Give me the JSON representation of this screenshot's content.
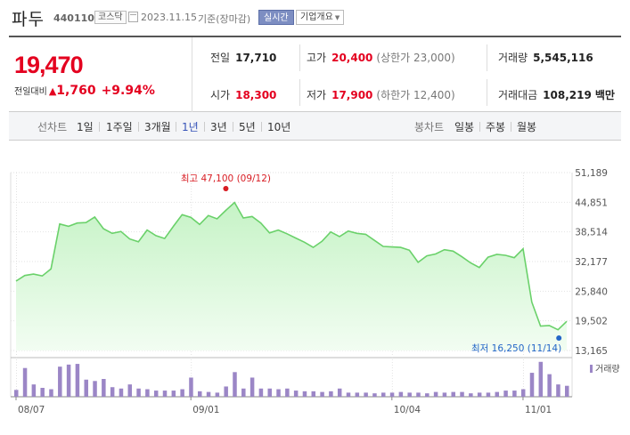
{
  "header": {
    "name": "파두",
    "code": "440110",
    "market": "코스닥",
    "date": "2023.11.15",
    "basis": "기준(장마감)",
    "realtime_button": "실시간",
    "company_button": "기업개요"
  },
  "quote": {
    "current": "19,470",
    "change_label": "전일대비",
    "change_amount": "1,760",
    "change_percent": "+9.94%",
    "prev_close_label": "전일",
    "prev_close": "17,710",
    "high_label": "고가",
    "high": "20,400",
    "upper_limit": "(상한가 23,000)",
    "volume_label": "거래량",
    "volume": "5,545,116",
    "open_label": "시가",
    "open": "18,300",
    "low_label": "저가",
    "low": "17,900",
    "lower_limit": "(하한가 12,400)",
    "amount_label": "거래대금",
    "amount": "108,219",
    "amount_unit": "백만"
  },
  "period_tabs": {
    "label": "선차트",
    "items": [
      "1일",
      "1주일",
      "3개월",
      "1년",
      "3년",
      "5년",
      "10년"
    ],
    "active": "1년"
  },
  "candle_tabs": {
    "label": "봉차트",
    "items": [
      "일봉",
      "주봉",
      "월봉"
    ]
  },
  "chart_data": {
    "type": "area",
    "y_ticks": [
      "51,189",
      "44,851",
      "38,514",
      "32,177",
      "25,840",
      "19,502",
      "13,165"
    ],
    "ylim": [
      13165,
      51189
    ],
    "x_ticks": [
      "08/07",
      "09/01",
      "10/04",
      "11/01"
    ],
    "max_annotation": "최고 47,100 (09/12)",
    "min_annotation": "최저 16,250 (11/14)",
    "volume_legend": "거래량",
    "grid": true,
    "colors": {
      "line": "#6ad16a",
      "fill_top": "#c6f3c6",
      "fill_bottom": "#f2fdf2",
      "volume": "#9b86c6",
      "max": "#d81c23",
      "min": "#2466c8"
    },
    "price_values": [
      28000,
      29200,
      29500,
      29100,
      30600,
      40200,
      39700,
      40400,
      40500,
      41700,
      39200,
      38200,
      38600,
      37000,
      36400,
      38900,
      37700,
      37100,
      39700,
      42200,
      41600,
      40100,
      42000,
      41300,
      43100,
      44800,
      41500,
      41800,
      40400,
      38300,
      38900,
      38100,
      37200,
      36300,
      35200,
      36500,
      38500,
      37500,
      38700,
      38200,
      38000,
      36700,
      35400,
      35300,
      35200,
      34600,
      32000,
      33400,
      33800,
      34700,
      34400,
      33200,
      31900,
      30900,
      33100,
      33700,
      33500,
      33000,
      34900,
      23500,
      18400,
      18500,
      17600,
      19400
    ],
    "volume_values": [
      10,
      42,
      18,
      13,
      11,
      44,
      47,
      48,
      25,
      23,
      26,
      14,
      12,
      18,
      12,
      11,
      9,
      9,
      9,
      11,
      28,
      8,
      7,
      6,
      15,
      36,
      12,
      28,
      12,
      12,
      11,
      12,
      9,
      8,
      8,
      7,
      8,
      12,
      6,
      6,
      6,
      5,
      6,
      6,
      7,
      6,
      6,
      5,
      7,
      6,
      7,
      7,
      5,
      6,
      6,
      7,
      9,
      9,
      11,
      35,
      51,
      33,
      18,
      16
    ],
    "volume_max": 52
  }
}
